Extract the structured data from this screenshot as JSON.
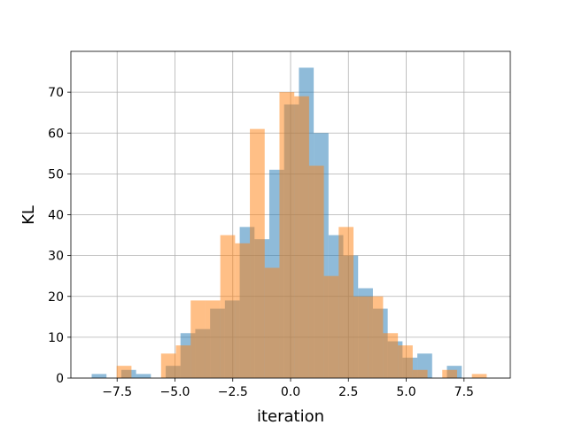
{
  "chart_data": {
    "type": "bar",
    "subtype": "overlapping-histogram",
    "title": "",
    "xlabel": "iteration",
    "ylabel": "KL",
    "xlim": [
      -9.5,
      9.5
    ],
    "ylim": [
      0,
      80
    ],
    "grid": true,
    "x_ticks": [
      -7.5,
      -5.0,
      -2.5,
      0.0,
      2.5,
      5.0,
      7.5
    ],
    "x_tick_labels": [
      "−7.5",
      "−5.0",
      "−2.5",
      "0.0",
      "2.5",
      "5.0",
      "7.5"
    ],
    "y_ticks": [
      0,
      10,
      20,
      30,
      40,
      50,
      60,
      70
    ],
    "y_tick_labels": [
      "0",
      "10",
      "20",
      "30",
      "40",
      "50",
      "60",
      "70"
    ],
    "series": [
      {
        "color": "#1f77b4",
        "opacity": 0.5,
        "bins": [
          {
            "x0": -8.6,
            "x1": -7.96,
            "count": 1
          },
          {
            "x0": -7.96,
            "x1": -7.32,
            "count": 0
          },
          {
            "x0": -7.32,
            "x1": -6.68,
            "count": 2
          },
          {
            "x0": -6.68,
            "x1": -6.04,
            "count": 1
          },
          {
            "x0": -6.04,
            "x1": -5.4,
            "count": 0
          },
          {
            "x0": -5.4,
            "x1": -4.76,
            "count": 3
          },
          {
            "x0": -4.76,
            "x1": -4.12,
            "count": 11
          },
          {
            "x0": -4.12,
            "x1": -3.48,
            "count": 12
          },
          {
            "x0": -3.48,
            "x1": -2.84,
            "count": 17
          },
          {
            "x0": -2.84,
            "x1": -2.2,
            "count": 19
          },
          {
            "x0": -2.2,
            "x1": -1.56,
            "count": 37
          },
          {
            "x0": -1.56,
            "x1": -0.92,
            "count": 34
          },
          {
            "x0": -0.92,
            "x1": -0.28,
            "count": 51
          },
          {
            "x0": -0.28,
            "x1": 0.36,
            "count": 67
          },
          {
            "x0": 0.36,
            "x1": 1.0,
            "count": 76
          },
          {
            "x0": 1.0,
            "x1": 1.64,
            "count": 60
          },
          {
            "x0": 1.64,
            "x1": 2.28,
            "count": 35
          },
          {
            "x0": 2.28,
            "x1": 2.92,
            "count": 30
          },
          {
            "x0": 2.92,
            "x1": 3.56,
            "count": 22
          },
          {
            "x0": 3.56,
            "x1": 4.2,
            "count": 17
          },
          {
            "x0": 4.2,
            "x1": 4.84,
            "count": 9
          },
          {
            "x0": 4.84,
            "x1": 5.48,
            "count": 5
          },
          {
            "x0": 5.48,
            "x1": 6.12,
            "count": 6
          },
          {
            "x0": 6.12,
            "x1": 6.76,
            "count": 0
          },
          {
            "x0": 6.76,
            "x1": 7.4,
            "count": 3
          }
        ]
      },
      {
        "color": "#ff7f0e",
        "opacity": 0.5,
        "bins": [
          {
            "x0": -7.52,
            "x1": -6.88,
            "count": 3
          },
          {
            "x0": -6.88,
            "x1": -6.24,
            "count": 0
          },
          {
            "x0": -6.24,
            "x1": -5.6,
            "count": 0
          },
          {
            "x0": -5.6,
            "x1": -4.96,
            "count": 6
          },
          {
            "x0": -4.96,
            "x1": -4.32,
            "count": 8
          },
          {
            "x0": -4.32,
            "x1": -3.68,
            "count": 19
          },
          {
            "x0": -3.68,
            "x1": -3.04,
            "count": 19
          },
          {
            "x0": -3.04,
            "x1": -2.4,
            "count": 35
          },
          {
            "x0": -2.4,
            "x1": -1.76,
            "count": 33
          },
          {
            "x0": -1.76,
            "x1": -1.12,
            "count": 61
          },
          {
            "x0": -1.12,
            "x1": -0.48,
            "count": 27
          },
          {
            "x0": -0.48,
            "x1": 0.16,
            "count": 70
          },
          {
            "x0": 0.16,
            "x1": 0.8,
            "count": 69
          },
          {
            "x0": 0.8,
            "x1": 1.44,
            "count": 52
          },
          {
            "x0": 1.44,
            "x1": 2.08,
            "count": 25
          },
          {
            "x0": 2.08,
            "x1": 2.72,
            "count": 37
          },
          {
            "x0": 2.72,
            "x1": 3.36,
            "count": 20
          },
          {
            "x0": 3.36,
            "x1": 4.0,
            "count": 20
          },
          {
            "x0": 4.0,
            "x1": 4.64,
            "count": 11
          },
          {
            "x0": 4.64,
            "x1": 5.28,
            "count": 8
          },
          {
            "x0": 5.28,
            "x1": 5.92,
            "count": 2
          },
          {
            "x0": 5.92,
            "x1": 6.56,
            "count": 0
          },
          {
            "x0": 6.56,
            "x1": 7.2,
            "count": 2
          },
          {
            "x0": 7.2,
            "x1": 7.84,
            "count": 0
          },
          {
            "x0": 7.84,
            "x1": 8.48,
            "count": 1
          }
        ]
      }
    ]
  }
}
